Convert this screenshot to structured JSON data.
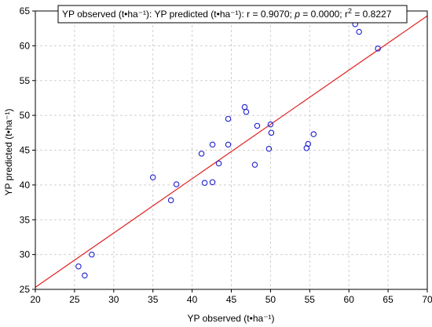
{
  "chart_data": {
    "type": "scatter",
    "xlabel": "YP observed (t•ha⁻¹)",
    "ylabel": "YP predicted (t•ha⁻¹)",
    "xlim": [
      20,
      70
    ],
    "ylim": [
      25,
      65
    ],
    "xticks": [
      "20",
      "25",
      "30",
      "35",
      "40",
      "45",
      "50",
      "55",
      "60",
      "65",
      "70"
    ],
    "yticks": [
      "25",
      "30",
      "35",
      "40",
      "45",
      "50",
      "55",
      "60",
      "65"
    ],
    "grid": "dashed",
    "legend_position": "top",
    "annotation": {
      "prefix": "YP observed (t•ha⁻¹): YP predicted (t•ha⁻¹):  r = 0.9070; ",
      "p_symbol": "p",
      "p_text": " = 0.0000; r",
      "sup": "2",
      "tail": " = 0.8227"
    },
    "regression_line": {
      "x": [
        20,
        70
      ],
      "y": [
        25.3,
        64.3
      ],
      "color": "#e02020"
    },
    "point_color": "#1f1fd0",
    "points": [
      {
        "x": 25.5,
        "y": 28.3
      },
      {
        "x": 26.3,
        "y": 27.0
      },
      {
        "x": 27.2,
        "y": 30.0
      },
      {
        "x": 35.0,
        "y": 41.1
      },
      {
        "x": 37.3,
        "y": 37.8
      },
      {
        "x": 38.0,
        "y": 40.1
      },
      {
        "x": 41.2,
        "y": 44.5
      },
      {
        "x": 41.6,
        "y": 40.3
      },
      {
        "x": 42.6,
        "y": 40.4
      },
      {
        "x": 42.6,
        "y": 45.8
      },
      {
        "x": 43.4,
        "y": 43.1
      },
      {
        "x": 44.6,
        "y": 45.8
      },
      {
        "x": 44.6,
        "y": 49.5
      },
      {
        "x": 46.7,
        "y": 51.2
      },
      {
        "x": 46.9,
        "y": 50.5
      },
      {
        "x": 48.0,
        "y": 42.9
      },
      {
        "x": 48.3,
        "y": 48.5
      },
      {
        "x": 49.8,
        "y": 45.2
      },
      {
        "x": 50.0,
        "y": 48.7
      },
      {
        "x": 50.1,
        "y": 47.5
      },
      {
        "x": 54.6,
        "y": 45.3
      },
      {
        "x": 54.8,
        "y": 45.9
      },
      {
        "x": 55.5,
        "y": 47.3
      },
      {
        "x": 60.8,
        "y": 63.1
      },
      {
        "x": 61.3,
        "y": 62.0
      },
      {
        "x": 63.7,
        "y": 59.6
      }
    ]
  }
}
